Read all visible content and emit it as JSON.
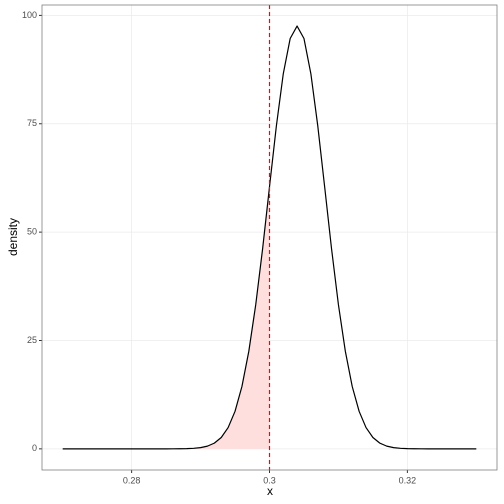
{
  "chart_data": {
    "type": "line",
    "x_label": "x",
    "y_label": "density",
    "x": [
      0.27,
      0.271,
      0.272,
      0.273,
      0.274,
      0.275,
      0.276,
      0.277,
      0.278,
      0.279,
      0.28,
      0.281,
      0.282,
      0.283,
      0.284,
      0.285,
      0.286,
      0.287,
      0.288,
      0.289,
      0.29,
      0.291,
      0.292,
      0.293,
      0.294,
      0.295,
      0.296,
      0.297,
      0.298,
      0.299,
      0.3,
      0.301,
      0.302,
      0.303,
      0.304,
      0.305,
      0.306,
      0.307,
      0.308,
      0.309,
      0.31,
      0.311,
      0.312,
      0.313,
      0.314,
      0.315,
      0.316,
      0.317,
      0.318,
      0.319,
      0.32,
      0.321,
      0.322,
      0.323,
      0.324,
      0.325,
      0.326,
      0.327,
      0.328,
      0.329,
      0.33
    ],
    "series": [
      {
        "color": "#000000",
        "values": [
          0,
          0,
          0,
          0,
          0,
          0,
          0,
          0,
          0,
          0,
          0,
          0,
          0,
          0,
          0,
          0,
          0.01,
          0.02,
          0.05,
          0.12,
          0.28,
          0.63,
          1.32,
          2.62,
          4.91,
          8.66,
          14.38,
          22.52,
          33.23,
          46.16,
          60.45,
          74.54,
          86.55,
          94.67,
          97.54,
          94.67,
          86.55,
          74.54,
          60.45,
          46.16,
          33.23,
          22.52,
          14.38,
          8.66,
          4.91,
          2.62,
          1.32,
          0.63,
          0.28,
          0.12,
          0.05,
          0.02,
          0.01,
          0,
          0,
          0,
          0,
          0,
          0,
          0,
          0
        ]
      }
    ],
    "shade_color": "#ffdede",
    "vline": 0.3,
    "vline_color": "#ff0000",
    "xlim": [
      0.267,
      0.333
    ],
    "xticks": [
      0.28,
      0.3,
      0.32
    ],
    "ylim": [
      -4.88,
      102.4
    ],
    "yticks": [
      0,
      25,
      50,
      75,
      100
    ],
    "grid": true
  }
}
